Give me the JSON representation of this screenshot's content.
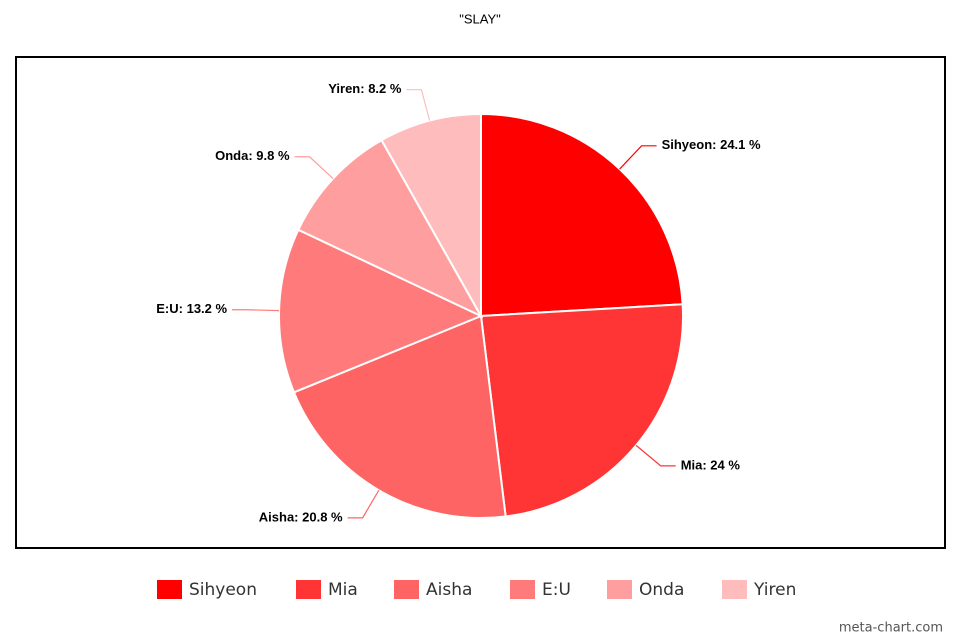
{
  "chart_data": {
    "type": "pie",
    "title": "\"SLAY\"",
    "categories": [
      "Sihyeon",
      "Mia",
      "Aisha",
      "E:U",
      "Onda",
      "Yiren"
    ],
    "values": [
      24.1,
      24,
      20.8,
      13.2,
      9.8,
      8.2
    ],
    "value_labels": [
      "Sihyeon: 24.1 %",
      "Mia: 24 %",
      "Aisha: 20.8 %",
      "E:U: 13.2 %",
      "Onda: 9.8 %",
      "Yiren: 8.2 %"
    ],
    "colors": [
      "#ff0000",
      "#ff3535",
      "#ff6464",
      "#ff7b7b",
      "#ff9e9e",
      "#ffbcbc"
    ],
    "legend": "bottom",
    "watermark": "meta-chart.com"
  }
}
